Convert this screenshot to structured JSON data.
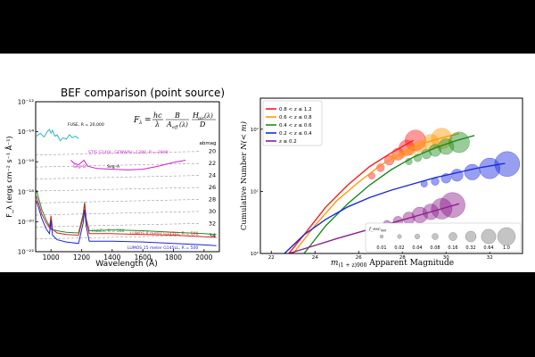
{
  "chart_data": [
    {
      "type": "line",
      "title": "BEF comparison (point source)",
      "xlabel": "Wavelength (Å)",
      "ylabel": "F_λ (ergs cm⁻² s⁻¹ Å⁻¹)",
      "xlim": [
        900,
        2100
      ],
      "y_log": true,
      "ylim_exp": [
        -22,
        -12
      ],
      "x_ticks": [
        1000,
        1200,
        1400,
        1600,
        1800,
        2000
      ],
      "y_tick_exponents": [
        -22,
        -20,
        -18,
        -16,
        -14,
        -12
      ],
      "grid": false,
      "abmag_header": "abmag",
      "abmag_ticks": [
        "20",
        "22",
        "24",
        "26",
        "28",
        "30",
        "32",
        "34"
      ],
      "formula": {
        "lhs": "F",
        "lhs_sub": "λ",
        "eq": "=",
        "f1_num": "hc",
        "f1_den": "λ",
        "f2_num": "B",
        "f2_den": "A",
        "f2_den_sub": "eff",
        "f2_den_arg": "(λ)",
        "f3_num": "H",
        "f3_num_sub": "air",
        "f3_num_arg": "(λ)",
        "f3_den": "D"
      },
      "series": [
        {
          "name": "FUSE, R = 20,000",
          "color": "#2ab7c7",
          "points": [
            [
              905,
              -14.3
            ],
            [
              930,
              -14.1
            ],
            [
              955,
              -14.35
            ],
            [
              975,
              -14.0
            ],
            [
              990,
              -13.85
            ],
            [
              1000,
              -14.1
            ],
            [
              1010,
              -13.9
            ],
            [
              1025,
              -14.3
            ],
            [
              1040,
              -14.2
            ],
            [
              1060,
              -14.6
            ],
            [
              1080,
              -14.4
            ],
            [
              1100,
              -14.5
            ],
            [
              1120,
              -14.2
            ],
            [
              1140,
              -14.4
            ],
            [
              1160,
              -14.3
            ],
            [
              1180,
              -14.45
            ]
          ]
        },
        {
          "name": "STIS G140L, GENWAV=1280, R = 2000",
          "color": "#d21ec8",
          "points": [
            [
              1130,
              -15.9
            ],
            [
              1150,
              -16.1
            ],
            [
              1180,
              -16.2
            ],
            [
              1215,
              -15.9
            ],
            [
              1240,
              -16.3
            ],
            [
              1300,
              -16.45
            ],
            [
              1400,
              -16.5
            ],
            [
              1500,
              -16.55
            ],
            [
              1600,
              -16.5
            ],
            [
              1700,
              -16.3
            ],
            [
              1800,
              -16.05
            ],
            [
              1880,
              -15.9
            ]
          ]
        },
        {
          "name": "HabEx, R = 500",
          "color": "#1e8c2a",
          "points": [
            [
              905,
              -17.9
            ],
            [
              940,
              -19.2
            ],
            [
              970,
              -19.9
            ],
            [
              990,
              -20.3
            ],
            [
              1000,
              -20.5
            ],
            [
              1040,
              -20.6
            ],
            [
              1100,
              -20.7
            ],
            [
              1180,
              -20.75
            ],
            [
              1210,
              -19.5
            ],
            [
              1220,
              -18.7
            ],
            [
              1230,
              -19.8
            ],
            [
              1250,
              -20.6
            ],
            [
              1400,
              -20.55
            ],
            [
              1600,
              -20.6
            ],
            [
              1800,
              -20.7
            ],
            [
              2000,
              -20.8
            ],
            [
              2080,
              -20.85
            ]
          ]
        },
        {
          "name": "LUMOS 8 meter G145LL, R = 500",
          "color": "#d8231e",
          "points": [
            [
              905,
              -18.3
            ],
            [
              940,
              -19.5
            ],
            [
              970,
              -20.1
            ],
            [
              990,
              -20.4
            ],
            [
              1000,
              -19.6
            ],
            [
              1010,
              -20.5
            ],
            [
              1040,
              -20.75
            ],
            [
              1100,
              -20.85
            ],
            [
              1180,
              -20.9
            ],
            [
              1210,
              -19.7
            ],
            [
              1220,
              -18.8
            ],
            [
              1230,
              -19.9
            ],
            [
              1250,
              -20.8
            ],
            [
              1400,
              -20.8
            ],
            [
              1600,
              -20.85
            ],
            [
              1800,
              -20.9
            ],
            [
              2000,
              -21.0
            ],
            [
              2080,
              -21.05
            ]
          ]
        },
        {
          "name": "LUMOS 15 meter G145LL, R = 500",
          "color": "#1e22d6",
          "points": [
            [
              905,
              -18.6
            ],
            [
              940,
              -19.8
            ],
            [
              970,
              -20.5
            ],
            [
              990,
              -20.8
            ],
            [
              1000,
              -19.9
            ],
            [
              1010,
              -20.9
            ],
            [
              1040,
              -21.2
            ],
            [
              1100,
              -21.35
            ],
            [
              1180,
              -21.45
            ],
            [
              1210,
              -20.1
            ],
            [
              1220,
              -19.2
            ],
            [
              1230,
              -20.3
            ],
            [
              1250,
              -21.3
            ],
            [
              1400,
              -21.3
            ],
            [
              1600,
              -21.35
            ],
            [
              1800,
              -21.45
            ],
            [
              2000,
              -21.55
            ],
            [
              2080,
              -21.6
            ]
          ]
        }
      ],
      "annotations": [
        "Seg–B",
        "Seg–A"
      ]
    },
    {
      "type": "scatter",
      "xlabel_main": "m",
      "xlabel_sub": "(1 + z)900",
      "xlabel_rest": " Apparent Magnitude",
      "ylabel_main": "Cumulative Number ",
      "ylabel_italic": "N(< m)",
      "xlim": [
        21.5,
        33.5
      ],
      "x_ticks": [
        22,
        24,
        26,
        28,
        30,
        32
      ],
      "y_log": true,
      "ylim_exp": [
        0,
        2.5
      ],
      "y_tick_exponents": [
        0,
        1,
        2
      ],
      "legend_position": "top-left",
      "size_legend": {
        "title": "f_esc",
        "title_sub": "900",
        "values": [
          0.01,
          0.02,
          0.04,
          0.08,
          0.16,
          0.32,
          0.64,
          1.0
        ],
        "labels": [
          "0.01",
          "0.02",
          "0.04",
          "0.08",
          "0.16",
          "0.32",
          "0.64",
          "1.0"
        ]
      },
      "series": [
        {
          "name": "0.8 < z ≤ 1.2",
          "color": "#ff1a1a",
          "curve": [
            [
              22.8,
              0.0
            ],
            [
              23.5,
              0.3
            ],
            [
              24.5,
              0.75
            ],
            [
              25.5,
              1.1
            ],
            [
              26.5,
              1.4
            ],
            [
              27.5,
              1.62
            ],
            [
              28.5,
              1.82
            ]
          ],
          "points": [
            [
              26.6,
              1.25,
              0.02
            ],
            [
              27.0,
              1.38,
              0.04
            ],
            [
              27.4,
              1.5,
              0.08
            ],
            [
              27.8,
              1.6,
              0.16
            ],
            [
              28.2,
              1.7,
              0.32
            ],
            [
              28.6,
              1.82,
              0.64
            ]
          ]
        },
        {
          "name": "0.6 < z ≤ 0.8",
          "color": "#ff9a00",
          "curve": [
            [
              23.0,
              0.0
            ],
            [
              24.0,
              0.45
            ],
            [
              25.0,
              0.85
            ],
            [
              26.0,
              1.15
            ],
            [
              27.0,
              1.42
            ],
            [
              28.0,
              1.62
            ],
            [
              29.0,
              1.78
            ],
            [
              30.0,
              1.88
            ],
            [
              30.6,
              1.93
            ]
          ],
          "points": [
            [
              27.6,
              1.55,
              0.02
            ],
            [
              28.0,
              1.6,
              0.04
            ],
            [
              28.4,
              1.66,
              0.08
            ],
            [
              28.8,
              1.72,
              0.16
            ],
            [
              29.3,
              1.79,
              0.32
            ],
            [
              29.8,
              1.85,
              0.64
            ]
          ]
        },
        {
          "name": "0.4 < z ≤ 0.6",
          "color": "#1e8c1e",
          "curve": [
            [
              23.5,
              0.0
            ],
            [
              24.5,
              0.45
            ],
            [
              25.5,
              0.8
            ],
            [
              26.5,
              1.1
            ],
            [
              27.5,
              1.35
            ],
            [
              28.5,
              1.55
            ],
            [
              29.5,
              1.7
            ],
            [
              30.5,
              1.82
            ],
            [
              31.3,
              1.9
            ]
          ],
          "points": [
            [
              28.3,
              1.48,
              0.02
            ],
            [
              28.7,
              1.54,
              0.04
            ],
            [
              29.1,
              1.6,
              0.08
            ],
            [
              29.5,
              1.66,
              0.16
            ],
            [
              30.0,
              1.72,
              0.32
            ],
            [
              30.6,
              1.79,
              0.64
            ]
          ]
        },
        {
          "name": "0.2 < z ≤ 0.4",
          "color": "#1a2adc",
          "curve": [
            [
              22.6,
              0.0
            ],
            [
              23.5,
              0.3
            ],
            [
              24.5,
              0.55
            ],
            [
              25.5,
              0.75
            ],
            [
              26.5,
              0.9
            ],
            [
              27.5,
              1.02
            ],
            [
              28.5,
              1.12
            ],
            [
              29.5,
              1.22
            ],
            [
              30.5,
              1.3
            ],
            [
              31.5,
              1.38
            ],
            [
              32.7,
              1.45
            ]
          ],
          "points": [
            [
              29.0,
              1.12,
              0.02
            ],
            [
              29.5,
              1.16,
              0.04
            ],
            [
              30.0,
              1.21,
              0.08
            ],
            [
              30.5,
              1.26,
              0.16
            ],
            [
              31.2,
              1.31,
              0.32
            ],
            [
              32.0,
              1.37,
              0.64
            ],
            [
              32.8,
              1.44,
              1.0
            ]
          ]
        },
        {
          "name": "z ≤ 0.2",
          "color": "#8b1e8c",
          "curve": [
            [
              22.8,
              0.0
            ],
            [
              24.0,
              0.13
            ],
            [
              25.0,
              0.24
            ],
            [
              26.0,
              0.34
            ],
            [
              27.0,
              0.44
            ],
            [
              28.0,
              0.54
            ],
            [
              29.0,
              0.64
            ],
            [
              30.0,
              0.74
            ],
            [
              30.6,
              0.8
            ]
          ],
          "points": [
            [
              26.8,
              0.42,
              0.02
            ],
            [
              27.3,
              0.47,
              0.04
            ],
            [
              27.8,
              0.52,
              0.08
            ],
            [
              28.3,
              0.57,
              0.16
            ],
            [
              28.8,
              0.62,
              0.32
            ],
            [
              29.3,
              0.67,
              0.32
            ],
            [
              29.8,
              0.72,
              0.64
            ],
            [
              30.3,
              0.78,
              1.0
            ]
          ]
        }
      ]
    }
  ]
}
